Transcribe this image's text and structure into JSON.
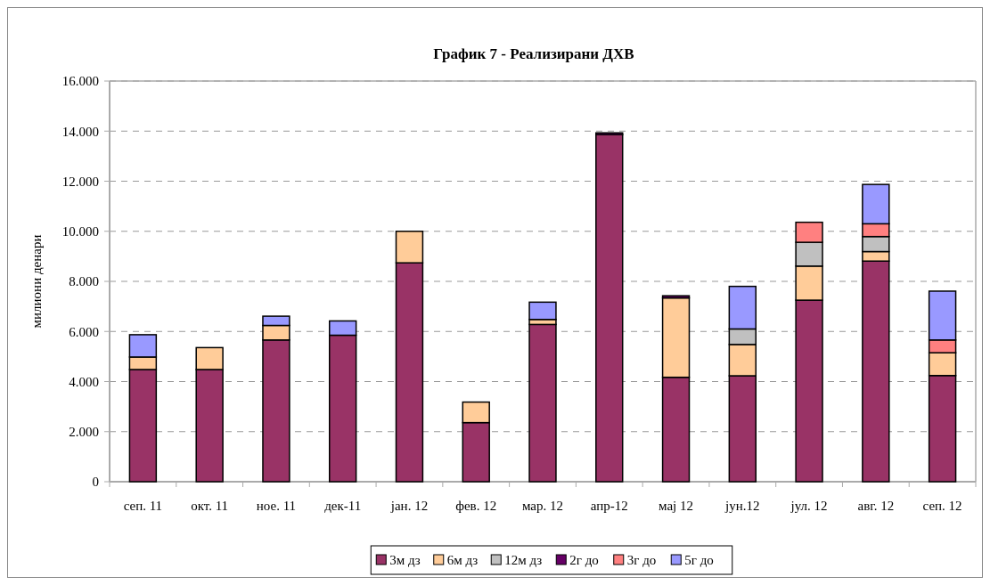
{
  "chart_data": {
    "type": "bar",
    "title": "График 7 - Реализирани ДХВ",
    "ylabel": "милиони денари",
    "stacked": true,
    "grid": "y",
    "legend": "bottom",
    "categories": [
      "сеп. 11",
      "окт. 11",
      "ное. 11",
      "дек-11",
      "јан. 12",
      "фев. 12",
      "мар. 12",
      "апр-12",
      "мај 12",
      "јун.12",
      "јул. 12",
      "авг. 12",
      "сеп. 12"
    ],
    "ylim": [
      0,
      16000
    ],
    "yticks": [
      {
        "value": 0,
        "label": "0"
      },
      {
        "value": 2000,
        "label": "2.000"
      },
      {
        "value": 4000,
        "label": "4.000"
      },
      {
        "value": 6000,
        "label": "6.000"
      },
      {
        "value": 8000,
        "label": "8.000"
      },
      {
        "value": 10000,
        "label": "10.000"
      },
      {
        "value": 12000,
        "label": "12.000"
      },
      {
        "value": 14000,
        "label": "14.000"
      },
      {
        "value": 16000,
        "label": "16.000"
      }
    ],
    "series": [
      {
        "name": "3м дз",
        "color": "#993366",
        "values": [
          4480,
          4480,
          5660,
          5850,
          8740,
          2360,
          6280,
          13860,
          4170,
          4230,
          7250,
          8810,
          4240
        ]
      },
      {
        "name": "6м дз",
        "color": "#ffcc99",
        "values": [
          500,
          875,
          580,
          0,
          1260,
          820,
          200,
          0,
          3170,
          1250,
          1360,
          380,
          910
        ]
      },
      {
        "name": "12м дз",
        "color": "#c0c0c0",
        "values": [
          0,
          0,
          0,
          0,
          0,
          0,
          0,
          0,
          0,
          620,
          950,
          600,
          0
        ]
      },
      {
        "name": "2г до",
        "color": "#660066",
        "values": [
          0,
          0,
          0,
          0,
          0,
          0,
          0,
          70,
          85,
          0,
          0,
          0,
          0
        ]
      },
      {
        "name": "3г до",
        "color": "#ff8080",
        "values": [
          0,
          0,
          0,
          0,
          0,
          0,
          0,
          0,
          0,
          0,
          800,
          510,
          510
        ]
      },
      {
        "name": "5г до",
        "color": "#9999ff",
        "values": [
          890,
          0,
          370,
          570,
          0,
          0,
          690,
          0,
          0,
          1700,
          0,
          1570,
          1950
        ]
      }
    ]
  }
}
